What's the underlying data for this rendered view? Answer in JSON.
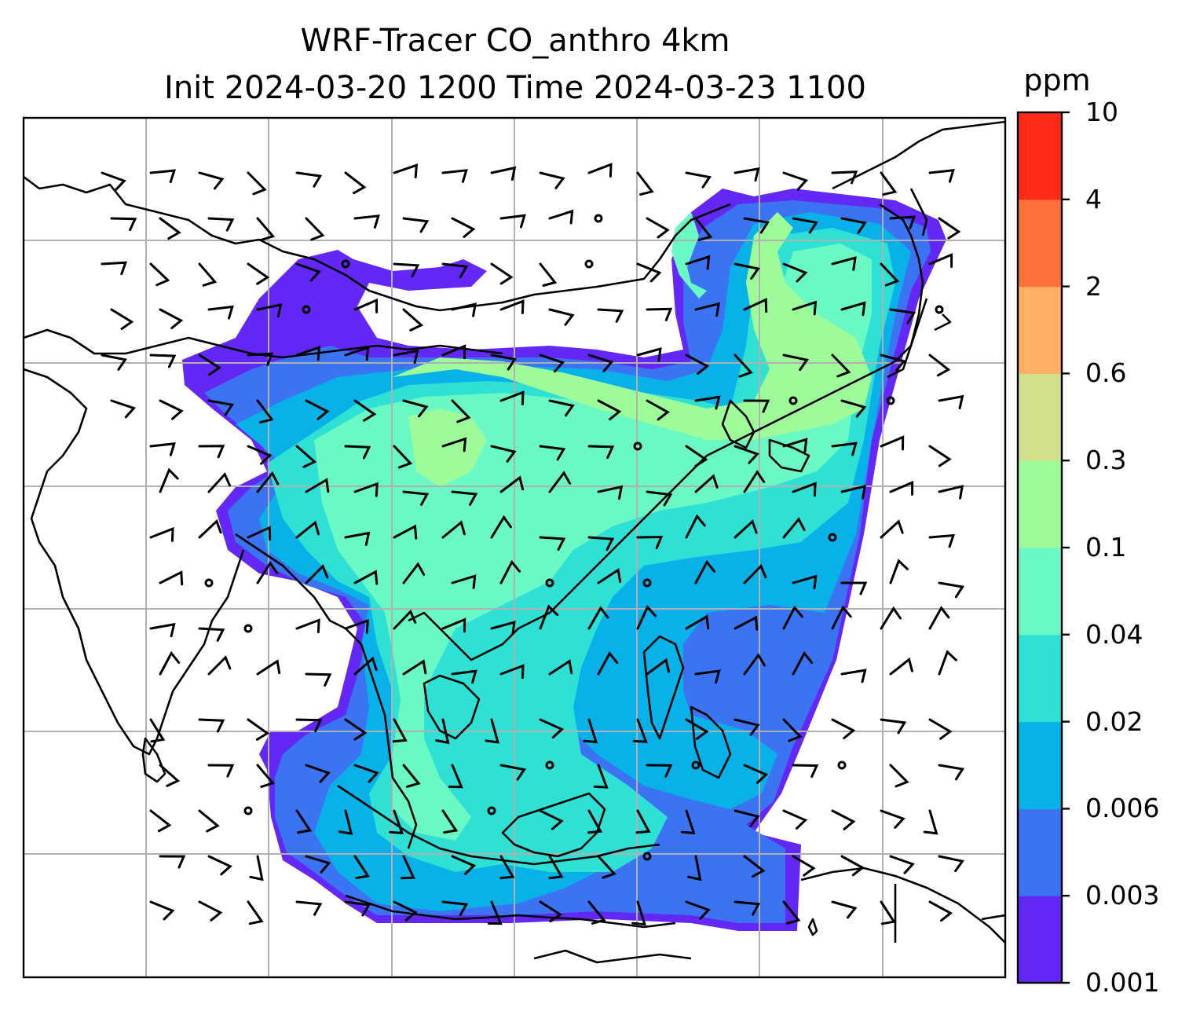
{
  "title": {
    "line1": "WRF-Tracer CO_anthro 4km",
    "line2": "Init 2024-03-20 1200 Time 2024-03-23 1100"
  },
  "colorbar": {
    "unit": "ppm",
    "ticks": [
      "0.001",
      "0.003",
      "0.006",
      "0.02",
      "0.04",
      "0.1",
      "0.3",
      "0.6",
      "2",
      "4",
      "10"
    ],
    "colors": [
      "#6428f6",
      "#3a74f2",
      "#08b2e8",
      "#2fe0d4",
      "#6af9c4",
      "#9dfb99",
      "#d0e08a",
      "#ffb062",
      "#ff7138",
      "#ff2a18"
    ]
  },
  "map": {
    "variable": "CO_anthro",
    "resolution": "4km",
    "gridlines": true,
    "wind_barbs": true,
    "coastlines": true
  }
}
